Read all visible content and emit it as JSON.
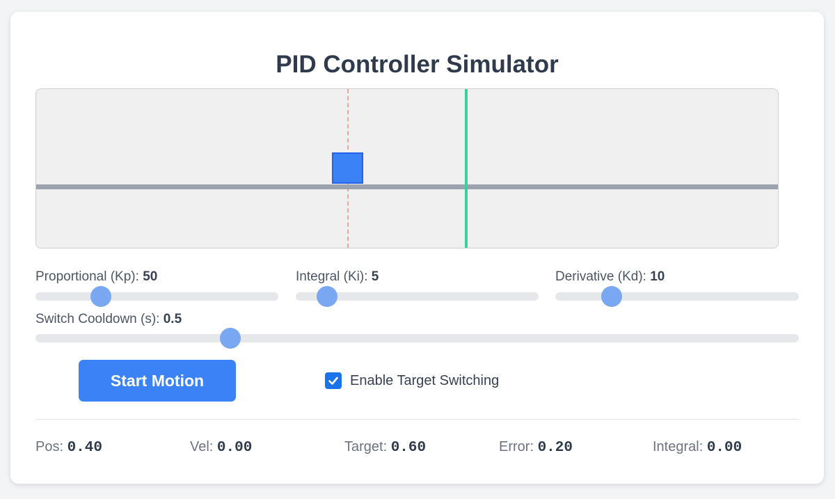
{
  "title": "PID Controller Simulator",
  "simulation": {
    "position": 0.4,
    "target": 0.6
  },
  "sliders": [
    {
      "label": "Proportional (Kp): ",
      "value": "50",
      "level": 0.27
    },
    {
      "label": "Integral (Ki): ",
      "value": "5",
      "level": 0.13
    },
    {
      "label": "Derivative (Kd): ",
      "value": "10",
      "level": 0.23
    },
    {
      "label": "Switch Cooldown (s): ",
      "value": "0.5",
      "level": 0.255
    }
  ],
  "controls": {
    "start_label": "Start Motion",
    "switch_label": "Enable Target Switching",
    "switch_checked": true
  },
  "stats": [
    {
      "label": "Pos: ",
      "value": "0.40"
    },
    {
      "label": "Vel: ",
      "value": "0.00"
    },
    {
      "label": "Target: ",
      "value": "0.60"
    },
    {
      "label": "Error: ",
      "value": "0.20"
    },
    {
      "label": "Integral: ",
      "value": "0.00"
    }
  ],
  "colors": {
    "accent": "#3b82f6",
    "target_line": "#34d399",
    "position_line": "#f2a2a2",
    "rail": "#9ca3af"
  }
}
